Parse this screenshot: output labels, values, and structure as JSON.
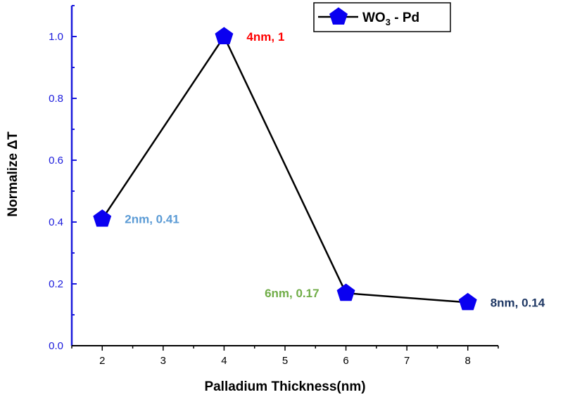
{
  "chart_data": {
    "type": "line",
    "xlabel": "Palladium Thickness(nm)",
    "ylabel": "Normalize ΔT",
    "xlim": [
      1.5,
      8.5
    ],
    "ylim": [
      0,
      1.1
    ],
    "x_ticks": [
      2,
      3,
      4,
      5,
      6,
      7,
      8
    ],
    "y_ticks": [
      0.0,
      0.2,
      0.4,
      0.6,
      0.8,
      1.0
    ],
    "y_tick_labels": [
      "0.0",
      "0.2",
      "0.4",
      "0.6",
      "0.8",
      "1.0"
    ],
    "grid": false,
    "legend_position": "top-right",
    "series": [
      {
        "name": "WO3 - Pd",
        "name_main": "WO",
        "name_sub": "3",
        "name_rest": " - Pd",
        "x": [
          2,
          4,
          6,
          8
        ],
        "y": [
          0.41,
          1.0,
          0.17,
          0.14
        ],
        "line_color": "#000000",
        "marker": "pentagon",
        "marker_color": "#0a00f0"
      }
    ],
    "annotations": [
      {
        "text": "2nm, 0.41",
        "x": 2,
        "y": 0.41,
        "color": "#5b9bd5",
        "side": "right"
      },
      {
        "text": "4nm, 1",
        "x": 4,
        "y": 1.0,
        "color": "#ff0000",
        "side": "right"
      },
      {
        "text": "6nm, 0.17",
        "x": 6,
        "y": 0.17,
        "color": "#70ad47",
        "side": "left"
      },
      {
        "text": "8nm, 0.14",
        "x": 8,
        "y": 0.14,
        "color": "#1f3864",
        "side": "right"
      }
    ],
    "colors": {
      "y_axis": "#1a1adc",
      "x_axis": "#000000"
    }
  }
}
